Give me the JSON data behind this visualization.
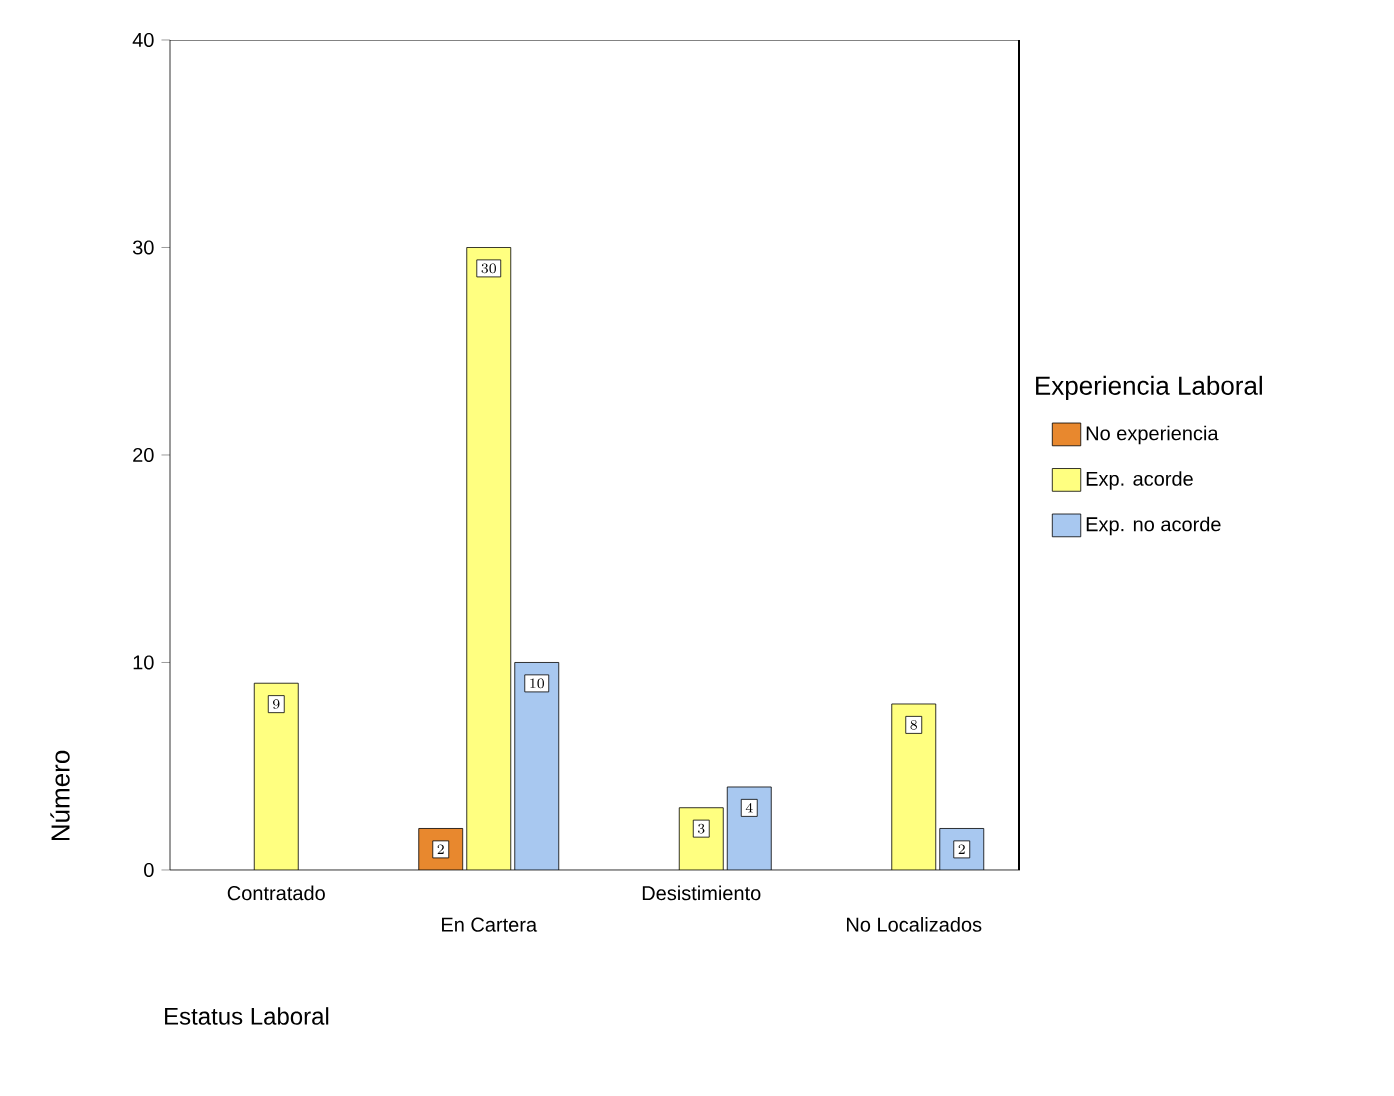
{
  "chart_data": {
    "type": "bar",
    "xlabel": "Estatus Laboral",
    "ylabel": "Número",
    "legend_title": "Experiencia Laboral",
    "categories": [
      "Contratado",
      "En Cartera",
      "Desistimiento",
      "No Localizados"
    ],
    "series": [
      {
        "name": "No experiencia",
        "color": "#e8882e",
        "values": [
          null,
          2,
          null,
          null
        ]
      },
      {
        "name": "Exp. acorde",
        "color": "#ffff80",
        "values": [
          9,
          30,
          3,
          8
        ]
      },
      {
        "name": "Exp. no acorde",
        "color": "#a8c8f0",
        "values": [
          null,
          10,
          4,
          2
        ]
      }
    ],
    "ylim": [
      0,
      40
    ],
    "yticks": [
      0,
      10,
      20,
      30,
      40
    ],
    "grid": false,
    "legend": "right",
    "data_labels": true
  }
}
